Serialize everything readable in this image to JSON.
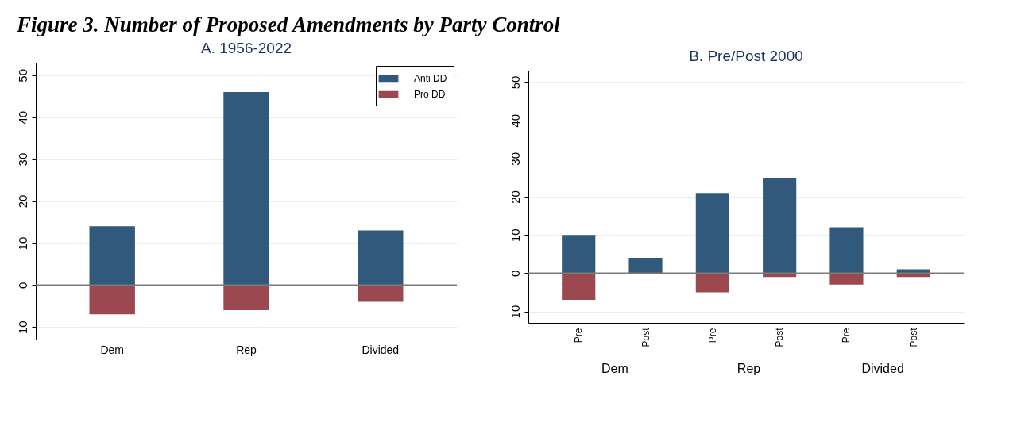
{
  "chart_data": [
    {
      "type": "bar",
      "title": "Figure 3. Number of Proposed Amendments by Party Control",
      "subtitle": "A. 1956-2022",
      "categories": [
        "Dem",
        "Rep",
        "Divided"
      ],
      "stacked": true,
      "series": [
        {
          "name": "Anti DD",
          "color": "#30597c",
          "values": [
            14,
            46,
            13
          ]
        },
        {
          "name": "Pro DD",
          "color": "#9c4850",
          "values": [
            -7,
            -6,
            -4
          ]
        }
      ],
      "ylim": [
        -13,
        53
      ],
      "yticks": [
        {
          "value": -10,
          "label": "10"
        },
        0,
        10,
        20,
        30,
        40,
        50
      ],
      "grid": "y",
      "legend": "top right",
      "ref_lines": [
        {
          "axis": "y",
          "value": 0,
          "color": "#7a7a7a"
        }
      ]
    },
    {
      "type": "bar",
      "title": "B. Pre/Post 2000",
      "categories": [
        "Pre",
        "Post",
        "Pre",
        "Post",
        "Pre",
        "Post"
      ],
      "stacked": true,
      "series": [
        {
          "color": "#30597c",
          "values": [
            10,
            4,
            21,
            25,
            12,
            1
          ]
        },
        {
          "color": "#9c4850",
          "values": [
            -7,
            0,
            -5,
            -1,
            -3,
            -1
          ]
        }
      ],
      "annotations": [
        "Dem",
        "Rep",
        "Divided"
      ],
      "ylim": [
        -13,
        53
      ],
      "yticks": [
        {
          "value": -10,
          "label": "10"
        },
        0,
        10,
        20,
        30,
        40,
        50
      ],
      "grid": "y",
      "ref_lines": [
        {
          "axis": "y",
          "value": 0,
          "color": "#7a7a7a"
        }
      ]
    }
  ]
}
